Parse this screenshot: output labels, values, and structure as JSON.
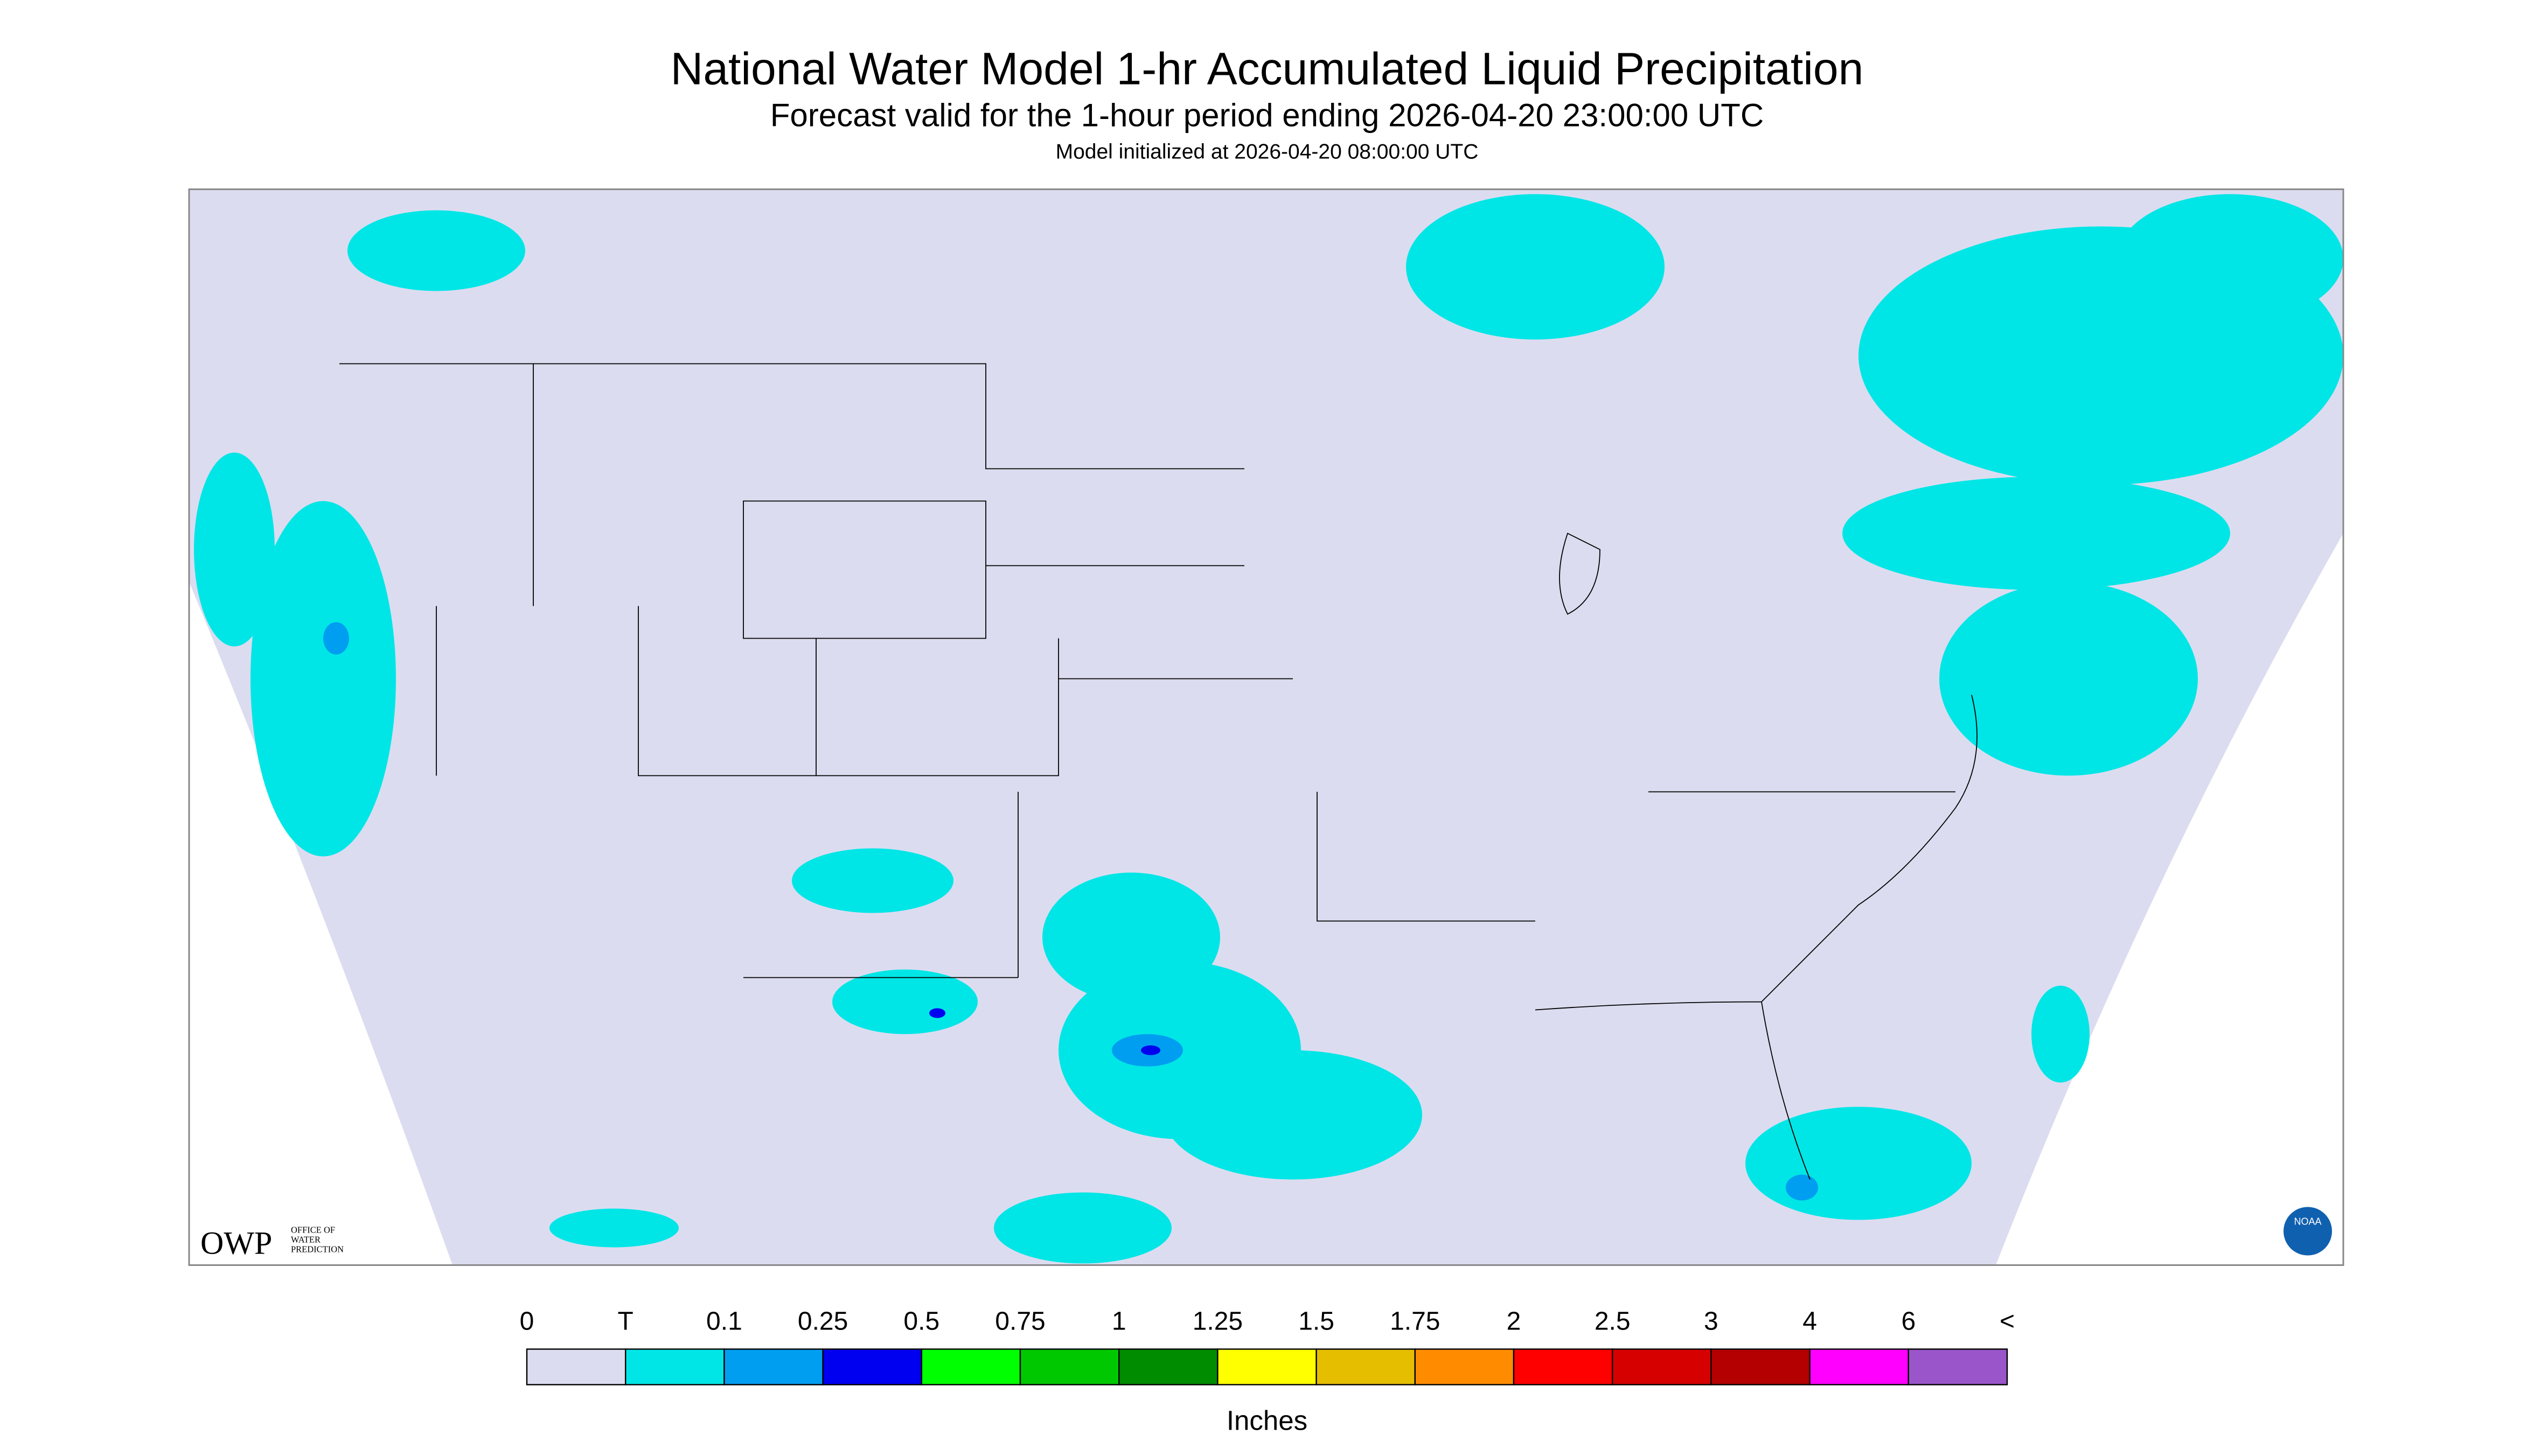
{
  "header": {
    "title": "National Water Model 1-hr Accumulated Liquid Precipitation",
    "subtitle": "Forecast valid for the 1-hour period ending 2026-04-20 23:00:00 UTC",
    "note": "Model initialized at 2026-04-20 08:00:00 UTC"
  },
  "logos": {
    "owp": "OWP",
    "owp_text": [
      "OFFICE OF",
      "WATER",
      "PREDICTION"
    ],
    "noaa": "NOAA"
  },
  "legend": {
    "labels": [
      "0",
      "T",
      "0.1",
      "0.25",
      "0.5",
      "0.75",
      "1",
      "1.25",
      "1.5",
      "1.75",
      "2",
      "2.5",
      "3",
      "4",
      "6",
      "<"
    ],
    "colors": [
      "#dcdcf0",
      "#00e6e6",
      "#009ef0",
      "#0000f0",
      "#00ff00",
      "#00c800",
      "#008c00",
      "#ffff00",
      "#e6be00",
      "#ff8c00",
      "#ff0000",
      "#d70000",
      "#b40000",
      "#ff00ff",
      "#9955c9"
    ],
    "units": "Inches"
  }
}
